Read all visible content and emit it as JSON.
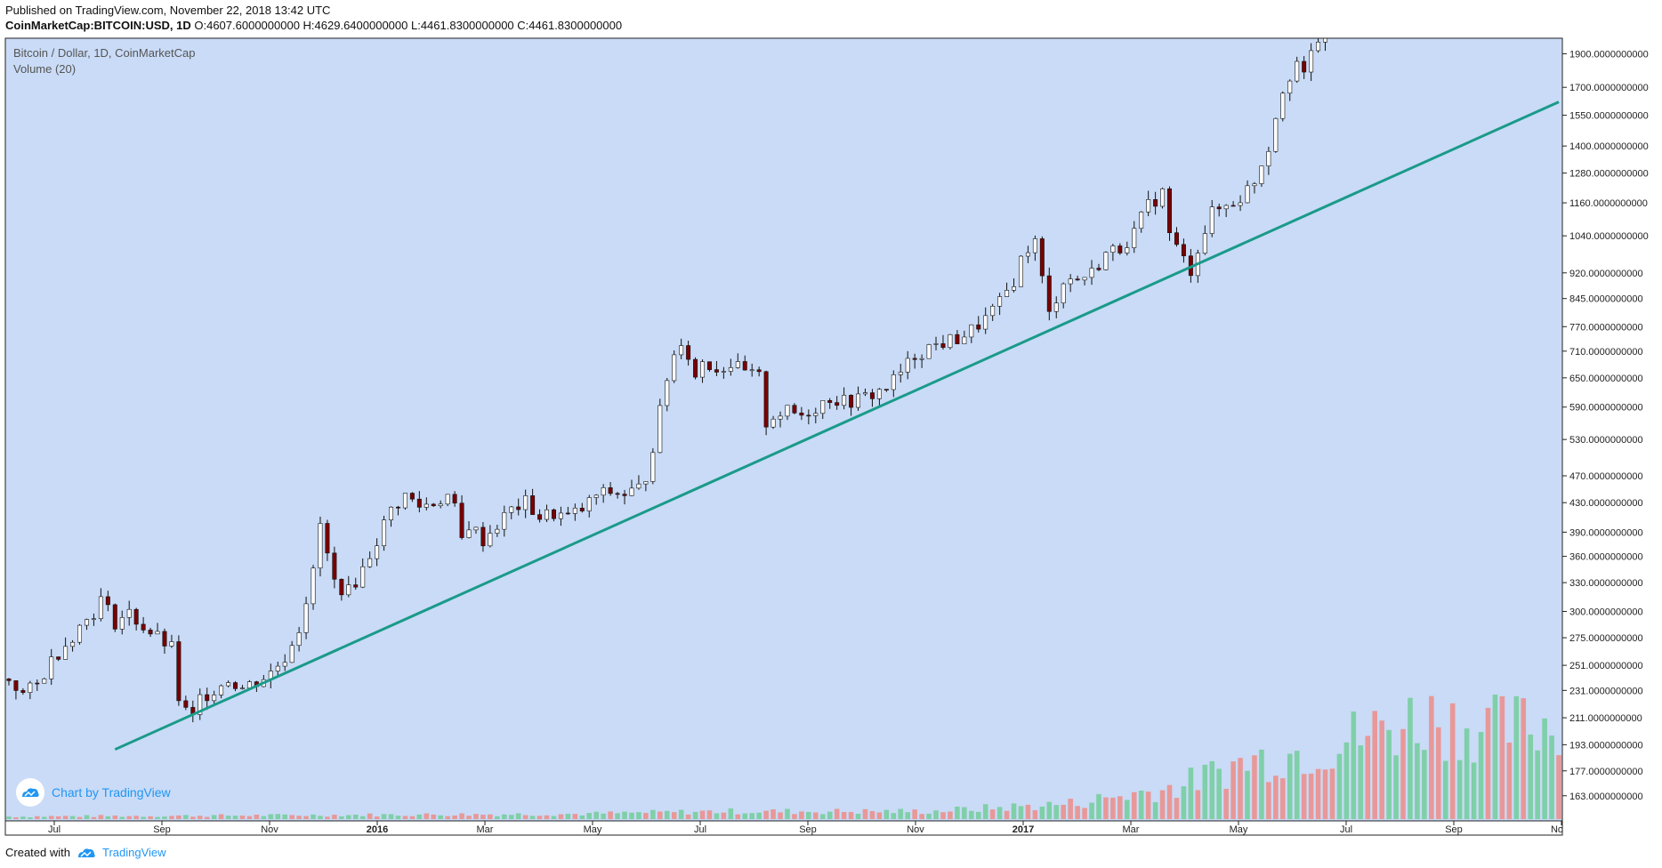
{
  "header": {
    "published": "Published on TradingView.com, November 22, 2018 13:42 UTC",
    "symbol": "CoinMarketCap:BITCOIN:USD, 1D",
    "ohlc": "O:4607.6000000000 H:4629.6400000000 L:4461.8300000000 C:4461.8300000000"
  },
  "overlay": {
    "title": "Bitcoin / Dollar, 1D, CoinMarketCap",
    "volume": "Volume (20)"
  },
  "badge": {
    "label": "Chart by TradingView",
    "icon": "tradingview-cloud-icon"
  },
  "footer": {
    "created": "Created with",
    "brand": "TradingView",
    "icon": "tradingview-cloud-icon"
  },
  "colors": {
    "background": "#c9dbf6",
    "trendline": "#1a9a8a",
    "up": "#ffffff",
    "down": "#7a0000",
    "vol_up": "#7fcfa8",
    "vol_down": "#e89898",
    "badge_blue": "#2196f3"
  },
  "chart_data": {
    "type": "candlestick",
    "scale": "log",
    "ylim": [
      150,
      2000
    ],
    "y_ticks": [
      {
        "v": 1900,
        "label": "1900.0000000000"
      },
      {
        "v": 1700,
        "label": "1700.0000000000"
      },
      {
        "v": 1550,
        "label": "1550.0000000000"
      },
      {
        "v": 1400,
        "label": "1400.0000000000"
      },
      {
        "v": 1280,
        "label": "1280.0000000000"
      },
      {
        "v": 1160,
        "label": "1160.0000000000"
      },
      {
        "v": 1040,
        "label": "1040.0000000000"
      },
      {
        "v": 920,
        "label": "920.0000000000"
      },
      {
        "v": 845,
        "label": "845.0000000000"
      },
      {
        "v": 770,
        "label": "770.0000000000"
      },
      {
        "v": 710,
        "label": "710.0000000000"
      },
      {
        "v": 650,
        "label": "650.0000000000"
      },
      {
        "v": 590,
        "label": "590.0000000000"
      },
      {
        "v": 530,
        "label": "530.0000000000"
      },
      {
        "v": 470,
        "label": "470.0000000000"
      },
      {
        "v": 430,
        "label": "430.0000000000"
      },
      {
        "v": 390,
        "label": "390.0000000000"
      },
      {
        "v": 360,
        "label": "360.0000000000"
      },
      {
        "v": 330,
        "label": "330.0000000000"
      },
      {
        "v": 300,
        "label": "300.0000000000"
      },
      {
        "v": 275,
        "label": "275.0000000000"
      },
      {
        "v": 251,
        "label": "251.0000000000"
      },
      {
        "v": 231,
        "label": "231.0000000000"
      },
      {
        "v": 211,
        "label": "211.0000000000"
      },
      {
        "v": 193,
        "label": "193.0000000000"
      },
      {
        "v": 177,
        "label": "177.0000000000"
      },
      {
        "v": 163,
        "label": "163.0000000000"
      }
    ],
    "x_ticks": [
      {
        "label": "Jul",
        "bold": false
      },
      {
        "label": "Sep",
        "bold": false
      },
      {
        "label": "Nov",
        "bold": false
      },
      {
        "label": "2016",
        "bold": true
      },
      {
        "label": "Mar",
        "bold": false
      },
      {
        "label": "May",
        "bold": false
      },
      {
        "label": "Jul",
        "bold": false
      },
      {
        "label": "Sep",
        "bold": false
      },
      {
        "label": "Nov",
        "bold": false
      },
      {
        "label": "2017",
        "bold": true
      },
      {
        "label": "Mar",
        "bold": false
      },
      {
        "label": "May",
        "bold": false
      },
      {
        "label": "Jul",
        "bold": false
      },
      {
        "label": "Sep",
        "bold": false
      },
      {
        "label": "No",
        "bold": false
      }
    ],
    "price_path": [
      [
        0,
        240
      ],
      [
        2,
        228
      ],
      [
        4,
        235
      ],
      [
        6,
        255
      ],
      [
        8,
        270
      ],
      [
        10,
        285
      ],
      [
        12,
        300
      ],
      [
        13,
        312
      ],
      [
        15,
        290
      ],
      [
        17,
        298
      ],
      [
        19,
        285
      ],
      [
        21,
        275
      ],
      [
        23,
        265
      ],
      [
        24,
        225
      ],
      [
        25,
        215
      ],
      [
        26,
        210
      ],
      [
        27,
        225
      ],
      [
        29,
        232
      ],
      [
        31,
        240
      ],
      [
        33,
        233
      ],
      [
        35,
        238
      ],
      [
        37,
        245
      ],
      [
        39,
        258
      ],
      [
        41,
        285
      ],
      [
        43,
        340
      ],
      [
        44,
        400
      ],
      [
        45,
        360
      ],
      [
        46,
        330
      ],
      [
        48,
        320
      ],
      [
        50,
        345
      ],
      [
        52,
        380
      ],
      [
        54,
        420
      ],
      [
        56,
        440
      ],
      [
        58,
        425
      ],
      [
        60,
        430
      ],
      [
        62,
        440
      ],
      [
        63,
        420
      ],
      [
        64,
        380
      ],
      [
        65,
        400
      ],
      [
        67,
        380
      ],
      [
        69,
        400
      ],
      [
        71,
        420
      ],
      [
        73,
        430
      ],
      [
        75,
        410
      ],
      [
        77,
        415
      ],
      [
        79,
        410
      ],
      [
        81,
        420
      ],
      [
        83,
        440
      ],
      [
        85,
        445
      ],
      [
        87,
        442
      ],
      [
        89,
        450
      ],
      [
        90,
        470
      ],
      [
        91,
        520
      ],
      [
        92,
        580
      ],
      [
        93,
        650
      ],
      [
        94,
        700
      ],
      [
        95,
        740
      ],
      [
        96,
        700
      ],
      [
        97,
        650
      ],
      [
        98,
        690
      ],
      [
        100,
        670
      ],
      [
        102,
        680
      ],
      [
        104,
        660
      ],
      [
        106,
        650
      ],
      [
        107,
        560
      ],
      [
        108,
        575
      ],
      [
        110,
        580
      ],
      [
        112,
        575
      ],
      [
        114,
        590
      ],
      [
        116,
        610
      ],
      [
        118,
        600
      ],
      [
        120,
        605
      ],
      [
        122,
        615
      ],
      [
        124,
        630
      ],
      [
        126,
        660
      ],
      [
        128,
        700
      ],
      [
        130,
        720
      ],
      [
        132,
        730
      ],
      [
        134,
        740
      ],
      [
        136,
        760
      ],
      [
        138,
        790
      ],
      [
        140,
        830
      ],
      [
        142,
        900
      ],
      [
        143,
        960
      ],
      [
        144,
        1000
      ],
      [
        145,
        1020
      ],
      [
        146,
        900
      ],
      [
        147,
        800
      ],
      [
        148,
        850
      ],
      [
        149,
        900
      ],
      [
        151,
        900
      ],
      [
        153,
        920
      ],
      [
        155,
        980
      ],
      [
        157,
        1000
      ],
      [
        159,
        1050
      ],
      [
        161,
        1150
      ],
      [
        163,
        1200
      ],
      [
        164,
        1050
      ],
      [
        165,
        1000
      ],
      [
        166,
        960
      ],
      [
        167,
        930
      ],
      [
        168,
        1000
      ],
      [
        170,
        1120
      ],
      [
        172,
        1150
      ],
      [
        174,
        1180
      ],
      [
        176,
        1250
      ],
      [
        178,
        1400
      ],
      [
        180,
        1700
      ],
      [
        182,
        1850
      ],
      [
        183,
        1750
      ],
      [
        184,
        1900
      ],
      [
        186,
        2100
      ]
    ],
    "trendline": {
      "from": {
        "x": 15,
        "y": 190
      },
      "to": {
        "x": 219,
        "y": 1620
      }
    },
    "volume_profile": [
      [
        0,
        0.02
      ],
      [
        40,
        0.03
      ],
      [
        80,
        0.04
      ],
      [
        100,
        0.06
      ],
      [
        130,
        0.06
      ],
      [
        150,
        0.12
      ],
      [
        165,
        0.25
      ],
      [
        175,
        0.45
      ],
      [
        185,
        0.55
      ],
      [
        200,
        0.8
      ],
      [
        210,
        0.7
      ],
      [
        219,
        0.75
      ]
    ]
  }
}
